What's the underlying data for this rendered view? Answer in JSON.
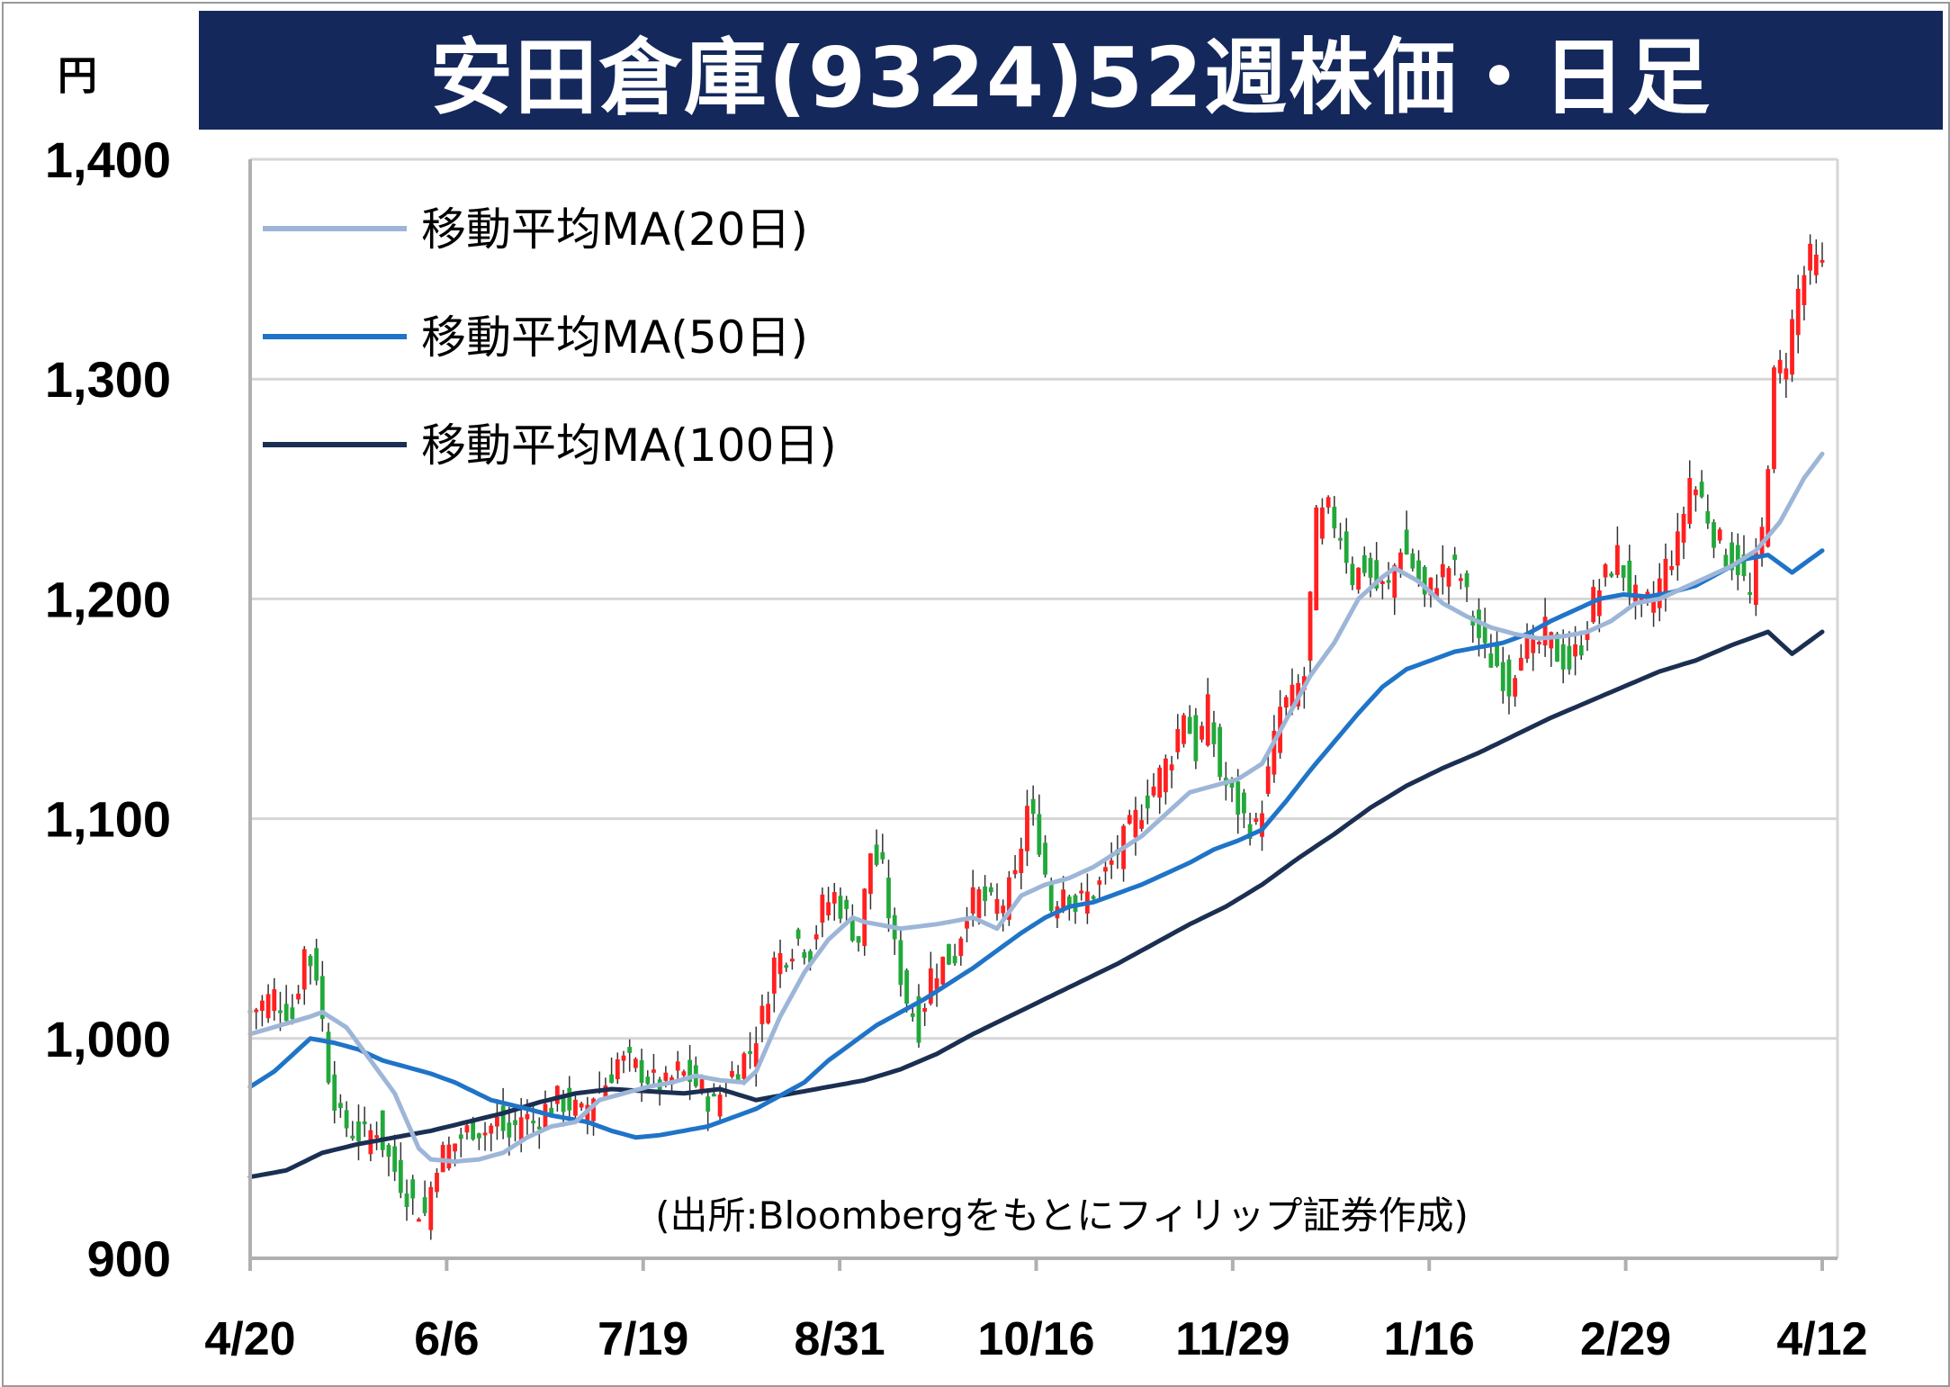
{
  "title": "安田倉庫(9324)52週株価・日足",
  "unit": "円",
  "source": "(出所:Bloombergをもとにフィリップ証券作成)",
  "colors": {
    "title_bg": "#14285c",
    "up": "#ff2020",
    "down": "#22a83a",
    "ma20": "#9db6d8",
    "ma50": "#1f74c8",
    "ma100": "#1b2f52",
    "grid": "#d6d6d6"
  },
  "chart_data": {
    "type": "candlestick",
    "ylim": [
      900,
      1400
    ],
    "yticks": [
      900,
      1000,
      1100,
      1200,
      1300,
      1400
    ],
    "ytick_labels": [
      "900",
      "1,000",
      "1,100",
      "1,200",
      "1,300",
      "1,400"
    ],
    "xtick_labels": [
      "4/20",
      "6/6",
      "7/19",
      "8/31",
      "10/16",
      "11/29",
      "1/16",
      "2/29",
      "4/12"
    ],
    "legend": [
      {
        "key": "ma20",
        "label": "移動平均MA(20日)"
      },
      {
        "key": "ma50",
        "label": "移動平均MA(50日)"
      },
      {
        "key": "ma100",
        "label": "移動平均MA(100日)"
      }
    ],
    "close_path": [
      [
        0,
        1012
      ],
      [
        4,
        1020
      ],
      [
        7,
        1010
      ],
      [
        9,
        1040
      ],
      [
        11,
        1030
      ],
      [
        13,
        985
      ],
      [
        15,
        962
      ],
      [
        17,
        958
      ],
      [
        19,
        955
      ],
      [
        21,
        960
      ],
      [
        23,
        945
      ],
      [
        25,
        935
      ],
      [
        27,
        925
      ],
      [
        29,
        920
      ],
      [
        31,
        945
      ],
      [
        33,
        950
      ],
      [
        35,
        955
      ],
      [
        37,
        960
      ],
      [
        39,
        958
      ],
      [
        41,
        962
      ],
      [
        43,
        955
      ],
      [
        45,
        965
      ],
      [
        47,
        962
      ],
      [
        49,
        968
      ],
      [
        51,
        972
      ],
      [
        53,
        970
      ],
      [
        55,
        965
      ],
      [
        57,
        975
      ],
      [
        59,
        980
      ],
      [
        61,
        990
      ],
      [
        63,
        988
      ],
      [
        65,
        985
      ],
      [
        67,
        980
      ],
      [
        69,
        978
      ],
      [
        71,
        985
      ],
      [
        73,
        982
      ],
      [
        75,
        976
      ],
      [
        77,
        970
      ],
      [
        79,
        980
      ],
      [
        81,
        988
      ],
      [
        83,
        995
      ],
      [
        85,
        1010
      ],
      [
        87,
        1035
      ],
      [
        89,
        1040
      ],
      [
        91,
        1045
      ],
      [
        93,
        1040
      ],
      [
        95,
        1060
      ],
      [
        97,
        1065
      ],
      [
        99,
        1055
      ],
      [
        101,
        1045
      ],
      [
        103,
        1085
      ],
      [
        105,
        1075
      ],
      [
        107,
        1040
      ],
      [
        109,
        1018
      ],
      [
        111,
        1005
      ],
      [
        113,
        1030
      ],
      [
        115,
        1035
      ],
      [
        117,
        1038
      ],
      [
        119,
        1060
      ],
      [
        121,
        1065
      ],
      [
        123,
        1060
      ],
      [
        125,
        1062
      ],
      [
        127,
        1072
      ],
      [
        129,
        1105
      ],
      [
        131,
        1090
      ],
      [
        133,
        1060
      ],
      [
        135,
        1070
      ],
      [
        137,
        1060
      ],
      [
        139,
        1065
      ],
      [
        141,
        1070
      ],
      [
        143,
        1080
      ],
      [
        145,
        1090
      ],
      [
        147,
        1100
      ],
      [
        149,
        1110
      ],
      [
        151,
        1120
      ],
      [
        153,
        1130
      ],
      [
        155,
        1150
      ],
      [
        157,
        1130
      ],
      [
        159,
        1150
      ],
      [
        161,
        1120
      ],
      [
        163,
        1110
      ],
      [
        165,
        1100
      ],
      [
        167,
        1095
      ],
      [
        169,
        1120
      ],
      [
        171,
        1150
      ],
      [
        173,
        1155
      ],
      [
        175,
        1165
      ],
      [
        177,
        1235
      ],
      [
        179,
        1240
      ],
      [
        181,
        1230
      ],
      [
        183,
        1210
      ],
      [
        185,
        1215
      ],
      [
        187,
        1205
      ],
      [
        189,
        1205
      ],
      [
        191,
        1225
      ],
      [
        193,
        1215
      ],
      [
        195,
        1200
      ],
      [
        197,
        1210
      ],
      [
        199,
        1215
      ],
      [
        201,
        1210
      ],
      [
        203,
        1190
      ],
      [
        205,
        1175
      ],
      [
        207,
        1170
      ],
      [
        209,
        1160
      ],
      [
        211,
        1180
      ],
      [
        213,
        1175
      ],
      [
        215,
        1185
      ],
      [
        217,
        1175
      ],
      [
        219,
        1170
      ],
      [
        221,
        1180
      ],
      [
        223,
        1200
      ],
      [
        225,
        1210
      ],
      [
        227,
        1220
      ],
      [
        229,
        1205
      ],
      [
        231,
        1195
      ],
      [
        233,
        1200
      ],
      [
        235,
        1215
      ],
      [
        237,
        1225
      ],
      [
        239,
        1255
      ],
      [
        241,
        1245
      ],
      [
        243,
        1230
      ],
      [
        245,
        1220
      ],
      [
        247,
        1215
      ],
      [
        249,
        1200
      ],
      [
        251,
        1230
      ],
      [
        253,
        1300
      ],
      [
        255,
        1310
      ],
      [
        257,
        1340
      ],
      [
        259,
        1355
      ],
      [
        261,
        1350
      ]
    ],
    "ma20": [
      [
        0,
        1002
      ],
      [
        10,
        1010
      ],
      [
        12,
        1012
      ],
      [
        16,
        1005
      ],
      [
        20,
        990
      ],
      [
        24,
        975
      ],
      [
        28,
        950
      ],
      [
        30,
        945
      ],
      [
        34,
        944
      ],
      [
        38,
        945
      ],
      [
        42,
        948
      ],
      [
        46,
        955
      ],
      [
        50,
        960
      ],
      [
        54,
        962
      ],
      [
        58,
        972
      ],
      [
        62,
        975
      ],
      [
        66,
        978
      ],
      [
        70,
        980
      ],
      [
        74,
        983
      ],
      [
        78,
        981
      ],
      [
        82,
        980
      ],
      [
        84,
        985
      ],
      [
        88,
        1010
      ],
      [
        92,
        1030
      ],
      [
        96,
        1045
      ],
      [
        100,
        1055
      ],
      [
        102,
        1053
      ],
      [
        108,
        1050
      ],
      [
        114,
        1052
      ],
      [
        120,
        1055
      ],
      [
        124,
        1050
      ],
      [
        128,
        1065
      ],
      [
        132,
        1070
      ],
      [
        136,
        1073
      ],
      [
        140,
        1078
      ],
      [
        144,
        1085
      ],
      [
        148,
        1092
      ],
      [
        152,
        1102
      ],
      [
        156,
        1112
      ],
      [
        160,
        1115
      ],
      [
        164,
        1118
      ],
      [
        168,
        1125
      ],
      [
        172,
        1145
      ],
      [
        176,
        1165
      ],
      [
        180,
        1180
      ],
      [
        184,
        1200
      ],
      [
        188,
        1210
      ],
      [
        190,
        1214
      ],
      [
        194,
        1208
      ],
      [
        198,
        1198
      ],
      [
        202,
        1192
      ],
      [
        206,
        1187
      ],
      [
        210,
        1184
      ],
      [
        214,
        1182
      ],
      [
        218,
        1183
      ],
      [
        222,
        1185
      ],
      [
        226,
        1190
      ],
      [
        230,
        1198
      ],
      [
        234,
        1200
      ],
      [
        238,
        1205
      ],
      [
        242,
        1210
      ],
      [
        246,
        1215
      ],
      [
        250,
        1222
      ],
      [
        254,
        1235
      ],
      [
        258,
        1255
      ],
      [
        261,
        1266
      ]
    ],
    "ma50": [
      [
        0,
        978
      ],
      [
        4,
        985
      ],
      [
        10,
        1000
      ],
      [
        14,
        998
      ],
      [
        18,
        995
      ],
      [
        22,
        990
      ],
      [
        26,
        987
      ],
      [
        30,
        984
      ],
      [
        34,
        980
      ],
      [
        40,
        972
      ],
      [
        46,
        968
      ],
      [
        50,
        965
      ],
      [
        56,
        962
      ],
      [
        60,
        958
      ],
      [
        64,
        955
      ],
      [
        68,
        956
      ],
      [
        72,
        958
      ],
      [
        76,
        960
      ],
      [
        80,
        964
      ],
      [
        84,
        968
      ],
      [
        88,
        974
      ],
      [
        92,
        980
      ],
      [
        96,
        990
      ],
      [
        100,
        998
      ],
      [
        104,
        1006
      ],
      [
        108,
        1012
      ],
      [
        112,
        1018
      ],
      [
        116,
        1025
      ],
      [
        120,
        1032
      ],
      [
        124,
        1040
      ],
      [
        128,
        1048
      ],
      [
        132,
        1055
      ],
      [
        136,
        1060
      ],
      [
        140,
        1062
      ],
      [
        144,
        1066
      ],
      [
        148,
        1070
      ],
      [
        152,
        1075
      ],
      [
        156,
        1080
      ],
      [
        160,
        1086
      ],
      [
        164,
        1090
      ],
      [
        168,
        1095
      ],
      [
        172,
        1108
      ],
      [
        176,
        1122
      ],
      [
        180,
        1135
      ],
      [
        184,
        1148
      ],
      [
        188,
        1160
      ],
      [
        192,
        1168
      ],
      [
        196,
        1172
      ],
      [
        200,
        1176
      ],
      [
        204,
        1178
      ],
      [
        208,
        1180
      ],
      [
        212,
        1184
      ],
      [
        216,
        1190
      ],
      [
        220,
        1195
      ],
      [
        224,
        1200
      ],
      [
        228,
        1202
      ],
      [
        232,
        1201
      ],
      [
        236,
        1203
      ],
      [
        240,
        1206
      ],
      [
        244,
        1212
      ],
      [
        248,
        1218
      ],
      [
        252,
        1220
      ],
      [
        256,
        1212
      ],
      [
        261,
        1222
      ]
    ],
    "ma100": [
      [
        0,
        937
      ],
      [
        6,
        940
      ],
      [
        12,
        948
      ],
      [
        18,
        952
      ],
      [
        24,
        955
      ],
      [
        30,
        958
      ],
      [
        36,
        962
      ],
      [
        42,
        966
      ],
      [
        48,
        971
      ],
      [
        54,
        975
      ],
      [
        60,
        977
      ],
      [
        66,
        976
      ],
      [
        72,
        975
      ],
      [
        78,
        977
      ],
      [
        84,
        972
      ],
      [
        90,
        975
      ],
      [
        96,
        978
      ],
      [
        102,
        981
      ],
      [
        108,
        986
      ],
      [
        114,
        993
      ],
      [
        120,
        1002
      ],
      [
        126,
        1010
      ],
      [
        132,
        1018
      ],
      [
        138,
        1026
      ],
      [
        144,
        1034
      ],
      [
        150,
        1043
      ],
      [
        156,
        1052
      ],
      [
        162,
        1060
      ],
      [
        168,
        1070
      ],
      [
        174,
        1082
      ],
      [
        180,
        1093
      ],
      [
        186,
        1105
      ],
      [
        192,
        1115
      ],
      [
        198,
        1123
      ],
      [
        204,
        1130
      ],
      [
        210,
        1138
      ],
      [
        216,
        1146
      ],
      [
        222,
        1153
      ],
      [
        228,
        1160
      ],
      [
        234,
        1167
      ],
      [
        240,
        1172
      ],
      [
        246,
        1179
      ],
      [
        252,
        1185
      ],
      [
        256,
        1175
      ],
      [
        261,
        1185
      ]
    ]
  }
}
